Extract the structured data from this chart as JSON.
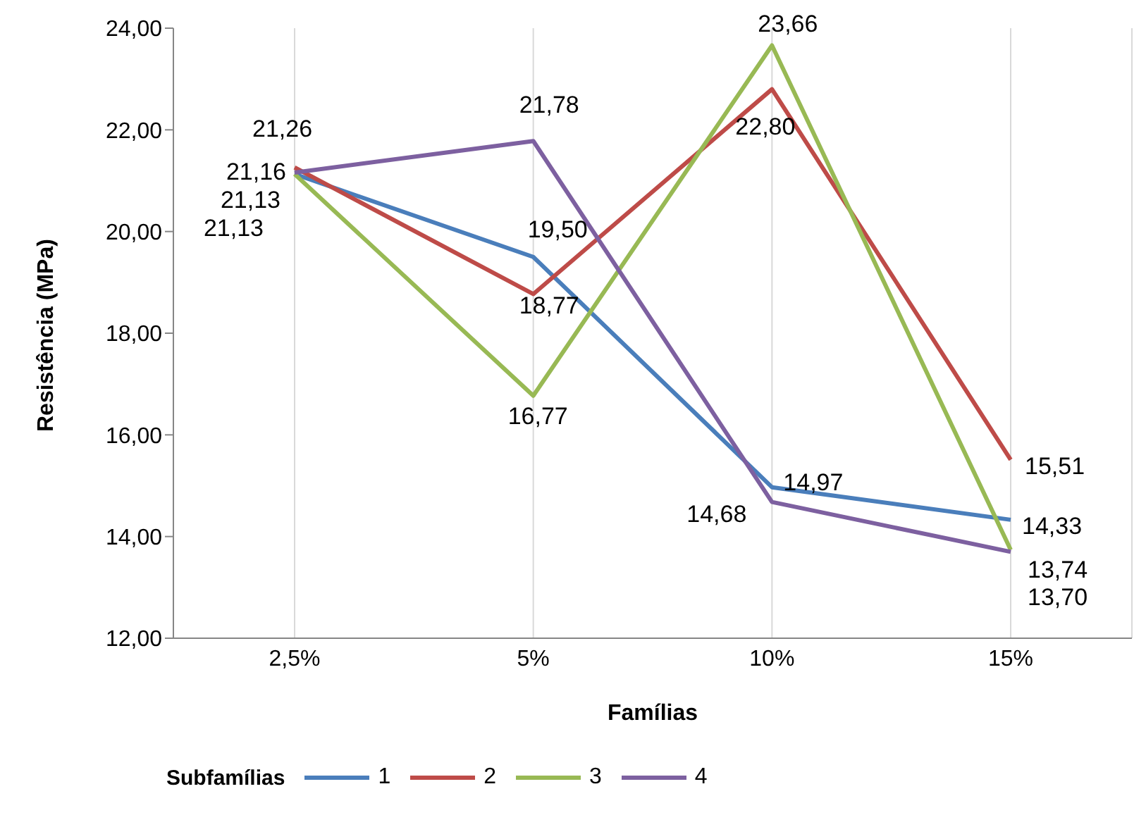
{
  "chart_data": {
    "type": "line",
    "xlabel": "Famílias",
    "ylabel": "Resistência (MPa)",
    "legend_title": "Subfamílias",
    "categories": [
      "2,5%",
      "5%",
      "10%",
      "15%"
    ],
    "series": [
      {
        "name": "1",
        "color": "#4a7ebb",
        "values": [
          21.13,
          19.5,
          14.97,
          14.33
        ],
        "value_labels": [
          "21,13",
          "19,50",
          "14,97",
          "14,33"
        ]
      },
      {
        "name": "2",
        "color": "#be4b48",
        "values": [
          21.26,
          18.77,
          22.8,
          15.51
        ],
        "value_labels": [
          "21,26",
          "18,77",
          "22,80",
          "15,51"
        ]
      },
      {
        "name": "3",
        "color": "#98b954",
        "values": [
          21.13,
          16.77,
          23.66,
          13.74
        ],
        "value_labels": [
          "21,13",
          "16,77",
          "23,66",
          "13,74"
        ]
      },
      {
        "name": "4",
        "color": "#7d60a0",
        "values": [
          21.16,
          21.78,
          14.68,
          13.7
        ],
        "value_labels": [
          "21,16",
          "21,78",
          "14,68",
          "13,70"
        ]
      }
    ],
    "ylim": [
      12,
      24
    ],
    "yticks": [
      {
        "value": 12,
        "label": "12,00"
      },
      {
        "value": 14,
        "label": "14,00"
      },
      {
        "value": 16,
        "label": "16,00"
      },
      {
        "value": 18,
        "label": "18,00"
      },
      {
        "value": 20,
        "label": "20,00"
      },
      {
        "value": 22,
        "label": "22,00"
      },
      {
        "value": 24,
        "label": "24,00"
      }
    ],
    "grid": "x",
    "legend": "bottom",
    "marker": "none",
    "line_style": "solid"
  }
}
